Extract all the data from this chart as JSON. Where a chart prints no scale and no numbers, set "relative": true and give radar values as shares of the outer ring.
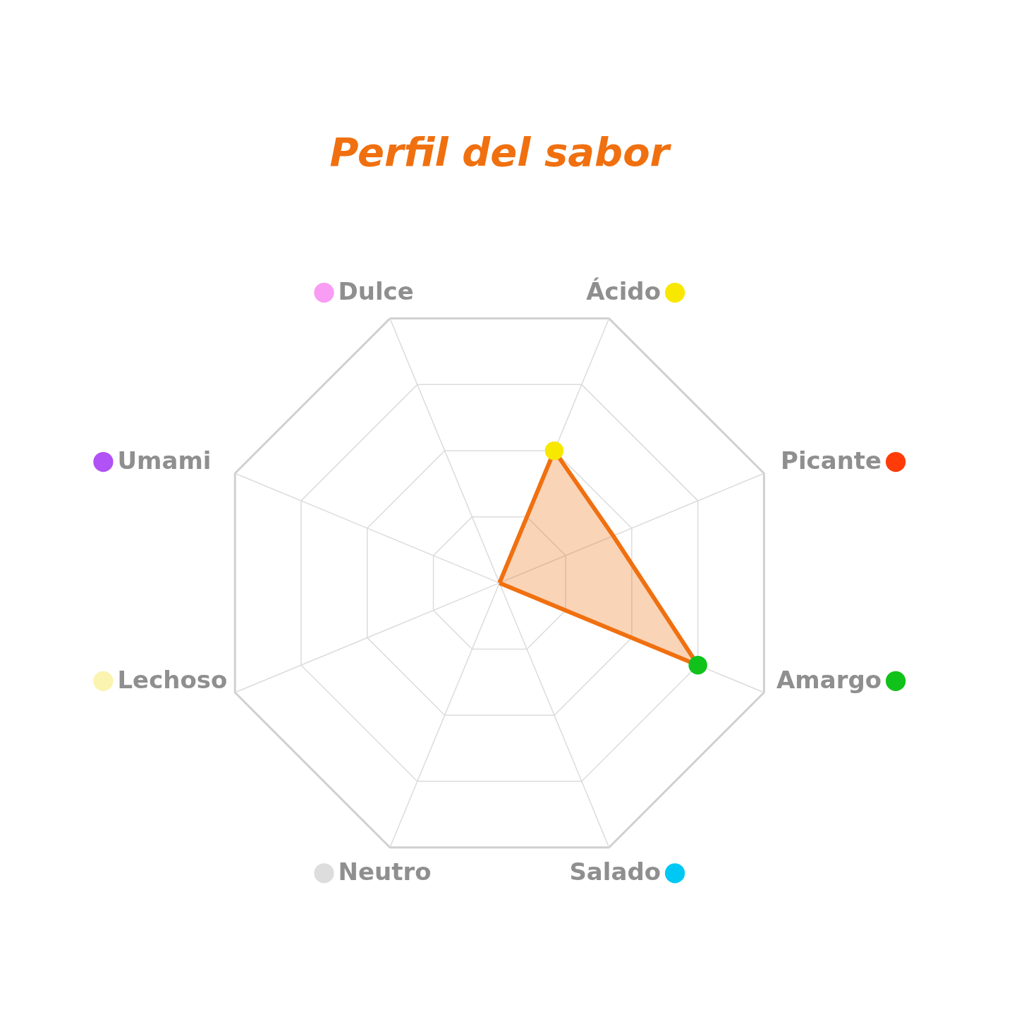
{
  "chart_data": {
    "type": "radar",
    "title": "Perfil del sabor",
    "categories": [
      "Dulce",
      "Ácido",
      "Picante",
      "Amargo",
      "Salado",
      "Neutro",
      "Lechoso",
      "Umami"
    ],
    "colors": [
      "#f99cf3",
      "#f8e800",
      "#ff3b0a",
      "#10c21a",
      "#00c8f5",
      "#dddddd",
      "#fbf3b0",
      "#b052f5"
    ],
    "relative": true,
    "grid": true,
    "marker": "circle",
    "series": [
      {
        "color": "#f07010",
        "values": [
          0,
          0.5,
          0.43,
          0.75,
          0,
          0,
          0,
          0
        ]
      }
    ]
  }
}
